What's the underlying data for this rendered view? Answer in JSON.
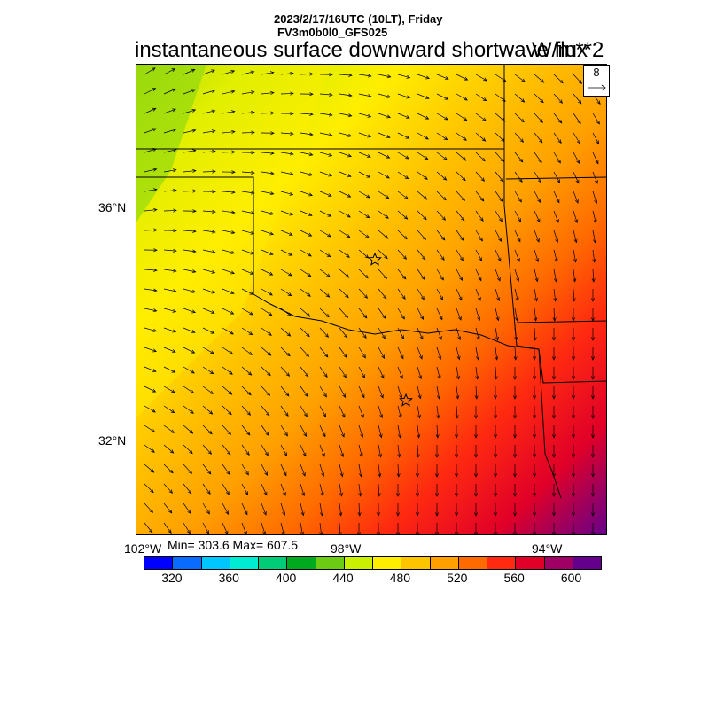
{
  "header": {
    "date_line": "2023/2/17/16UTC (10LT), Friday",
    "model_line": "FV3m0b0l0_GFS025",
    "title": "instantaneous surface downward shortwave flux",
    "units": "W/m**2"
  },
  "reference_vector": {
    "value": "8"
  },
  "map": {
    "lat_labels": [
      "36°N",
      "32°N"
    ],
    "lon_labels": [
      "102°W",
      "98°W",
      "94°W"
    ],
    "markers": [
      "star",
      "star"
    ]
  },
  "stats": {
    "text": "Min= 303.6 Max= 607.5"
  },
  "colorbar": {
    "colors": [
      "#0000ff",
      "#0a6cff",
      "#00c6ff",
      "#00ecd2",
      "#00cc78",
      "#00aa1e",
      "#6ccc14",
      "#c8f000",
      "#ffee00",
      "#ffc400",
      "#ffa000",
      "#ff6a00",
      "#ff2a10",
      "#e00028",
      "#a00064",
      "#64008c"
    ],
    "labels": [
      "320",
      "360",
      "400",
      "440",
      "480",
      "520",
      "560",
      "600"
    ]
  }
}
